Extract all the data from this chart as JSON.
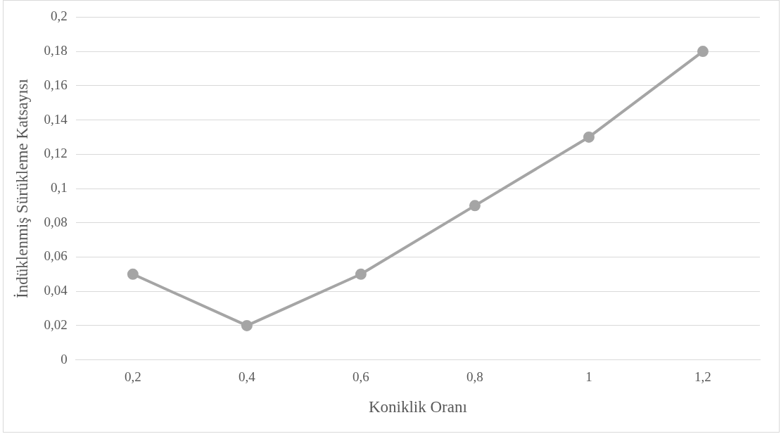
{
  "chart_data": {
    "type": "line",
    "xlabel": "Koniklik Oranı",
    "ylabel": "İndüklenmiş Sürükleme Katsayısı",
    "categories": [
      "0,2",
      "0,4",
      "0,6",
      "0,8",
      "1",
      "1,2"
    ],
    "series": [
      {
        "color": "#a5a5a5",
        "values": [
          0.05,
          0.02,
          0.05,
          0.09,
          0.13,
          0.18
        ]
      }
    ],
    "ylim": [
      0,
      0.2
    ],
    "yticks": [
      0,
      {
        "value": 0.02,
        "label": "0,02"
      },
      {
        "value": 0.04,
        "label": "0,04"
      },
      {
        "value": 0.06,
        "label": "0,06"
      },
      {
        "value": 0.08,
        "label": "0,08"
      },
      {
        "value": 0.1,
        "label": "0,1"
      },
      {
        "value": 0.12,
        "label": "0,12"
      },
      {
        "value": 0.14,
        "label": "0,14"
      },
      {
        "value": 0.16,
        "label": "0,16"
      },
      {
        "value": 0.18,
        "label": "0,18"
      },
      {
        "value": 0.2,
        "label": "0,2"
      }
    ],
    "grid": "y",
    "legend": false,
    "marker": "circle",
    "line_style": "solid"
  }
}
